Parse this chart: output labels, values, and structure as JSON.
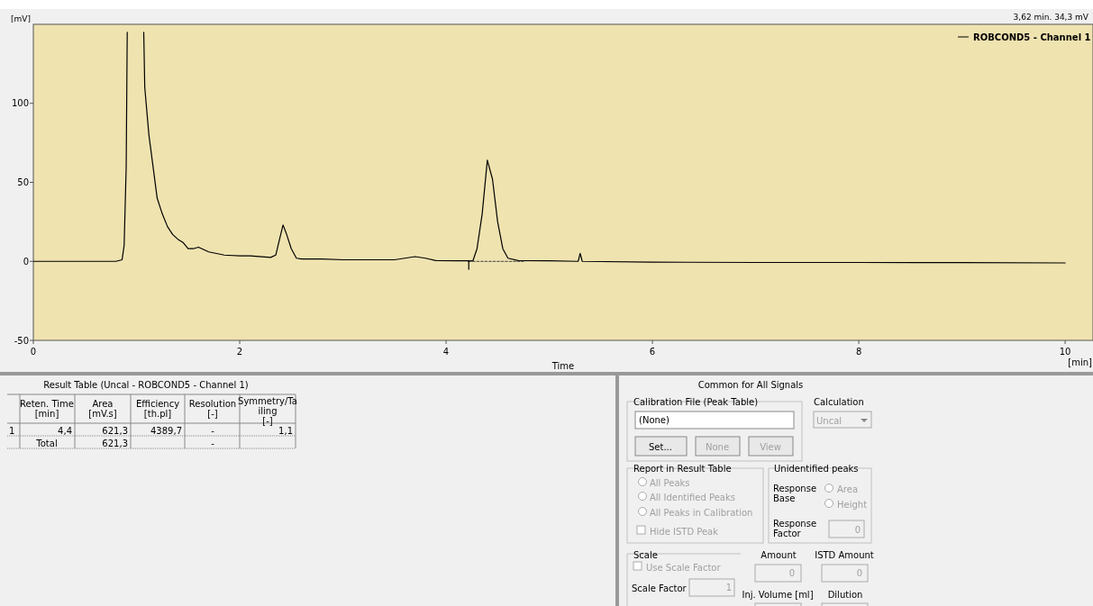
{
  "chart_data": {
    "type": "line",
    "xlabel": "Time",
    "ylabel": "[mV]",
    "xlim": [
      0,
      10.27
    ],
    "ylim": [
      -50,
      150
    ],
    "xticks": [
      0,
      2,
      4,
      6,
      8,
      10
    ],
    "yticks": [
      -50,
      0,
      50,
      100
    ],
    "legend": "top right",
    "grid": false,
    "series": [
      {
        "name": "ROBCOND5 -  Channel 1",
        "color": "#000000",
        "line_style": "solid",
        "x": [
          1.07,
          1.08,
          1.12,
          1.16,
          1.2,
          1.25,
          1.3,
          1.35,
          1.4,
          1.45,
          1.5,
          1.55,
          1.6,
          1.7,
          1.85,
          2.0,
          2.1,
          2.3,
          2.35,
          2.39,
          2.42,
          2.45,
          2.5,
          2.55,
          2.6,
          2.8,
          3.0,
          3.2,
          3.5,
          3.6,
          3.7,
          3.8,
          3.9,
          4.2,
          4.26,
          4.3,
          4.35,
          4.4,
          4.45,
          4.5,
          4.55,
          4.6,
          4.7,
          5.0,
          5.28,
          5.3,
          5.32,
          6.0,
          7.0,
          8.0,
          9.0,
          10.0
        ],
        "values": [
          145,
          110,
          80,
          60,
          40,
          30,
          22,
          17,
          14,
          12,
          8,
          8,
          9,
          6,
          4,
          3.5,
          3.5,
          2.5,
          4,
          15,
          23,
          18,
          8,
          2,
          1.5,
          1.5,
          1,
          1,
          1,
          2,
          3,
          2,
          0.5,
          0.3,
          0.3,
          8,
          30,
          64,
          52,
          25,
          8,
          2,
          0.5,
          0.3,
          0,
          5,
          0,
          -0.5,
          -0.7,
          -0.7,
          -0.8,
          -1
        ]
      },
      {
        "type": "line",
        "color": "#000000",
        "line_style": "solid",
        "x": [
          0,
          0.4,
          0.8,
          0.86,
          0.88,
          0.9,
          0.91
        ],
        "values": [
          0,
          0,
          0,
          1,
          10,
          60,
          145
        ]
      },
      {
        "type": "line",
        "color": "#404040",
        "line_style": "dotted",
        "x": [
          4.22,
          4.75
        ],
        "values": [
          0,
          0
        ]
      },
      {
        "type": "line",
        "color": "#000000",
        "line_style": "solid",
        "x": [
          4.22,
          4.22
        ],
        "values": [
          0,
          -5
        ]
      }
    ],
    "annotations": [
      "3,62 min.  34,3 mV",
      "[min]",
      "Result Table (Uncal - ROBCOND5 -  Channel 1)",
      "Reten. Time\n[min]",
      "Area\n[mV.s]",
      "Efficiency\n[th.pl]",
      "Resolution\n[-]",
      "Symmetry/Ta\niling\n[-]",
      "1",
      "4,4",
      "621,3",
      "4389,7",
      "-",
      "1,1",
      "Total",
      "621,3",
      "-",
      "Common for All Signals",
      "Calibration File (Peak Table)",
      "(None)",
      "Set...",
      "None",
      "View",
      "Calculation",
      "Uncal",
      "Report in Result Table",
      "All Peaks",
      "All Identified Peaks",
      "All Peaks in Calibration",
      "Hide ISTD Peak",
      "Unidentified peaks",
      "Response\nBase",
      "Area",
      "Height",
      "Response\nFactor",
      "0",
      "Scale",
      "Use Scale Factor",
      "Scale Factor",
      "1",
      "Amount",
      "0",
      "ISTD Amount",
      "0",
      "Inj. Volume [ml]",
      "Dilution"
    ]
  }
}
